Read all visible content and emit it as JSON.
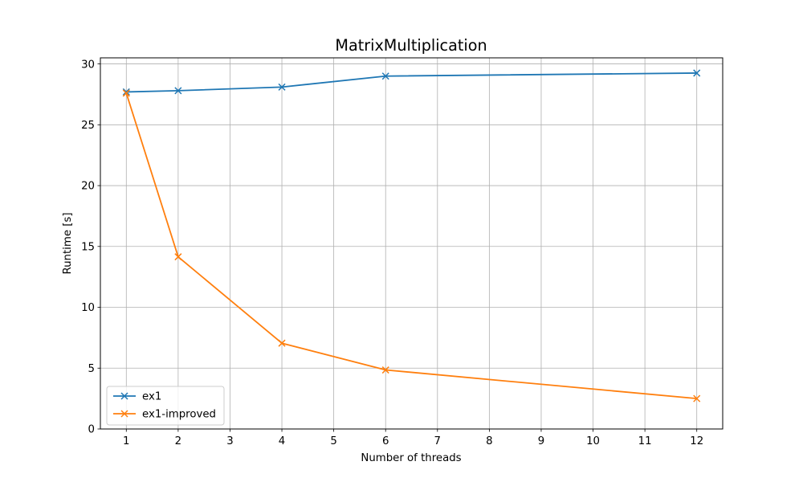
{
  "chart_data": {
    "type": "line",
    "title": "MatrixMultiplication",
    "xlabel": "Number of threads",
    "ylabel": "Runtime [s]",
    "xlim": [
      0.5,
      12.5
    ],
    "ylim": [
      0,
      30.5
    ],
    "xticks": [
      1,
      2,
      3,
      4,
      5,
      6,
      7,
      8,
      9,
      10,
      11,
      12
    ],
    "yticks": [
      0,
      5,
      10,
      15,
      20,
      25,
      30
    ],
    "grid": true,
    "legend_position": "lower-left",
    "series": [
      {
        "name": "ex1",
        "color": "#1f77b4",
        "marker": "x",
        "x": [
          1,
          2,
          4,
          6,
          12
        ],
        "values": [
          27.7,
          27.8,
          28.1,
          29.0,
          29.25
        ]
      },
      {
        "name": "ex1-improved",
        "color": "#ff7f0e",
        "marker": "x",
        "x": [
          1,
          2,
          4,
          6,
          12
        ],
        "values": [
          27.6,
          14.15,
          7.05,
          4.85,
          2.5
        ]
      }
    ]
  }
}
